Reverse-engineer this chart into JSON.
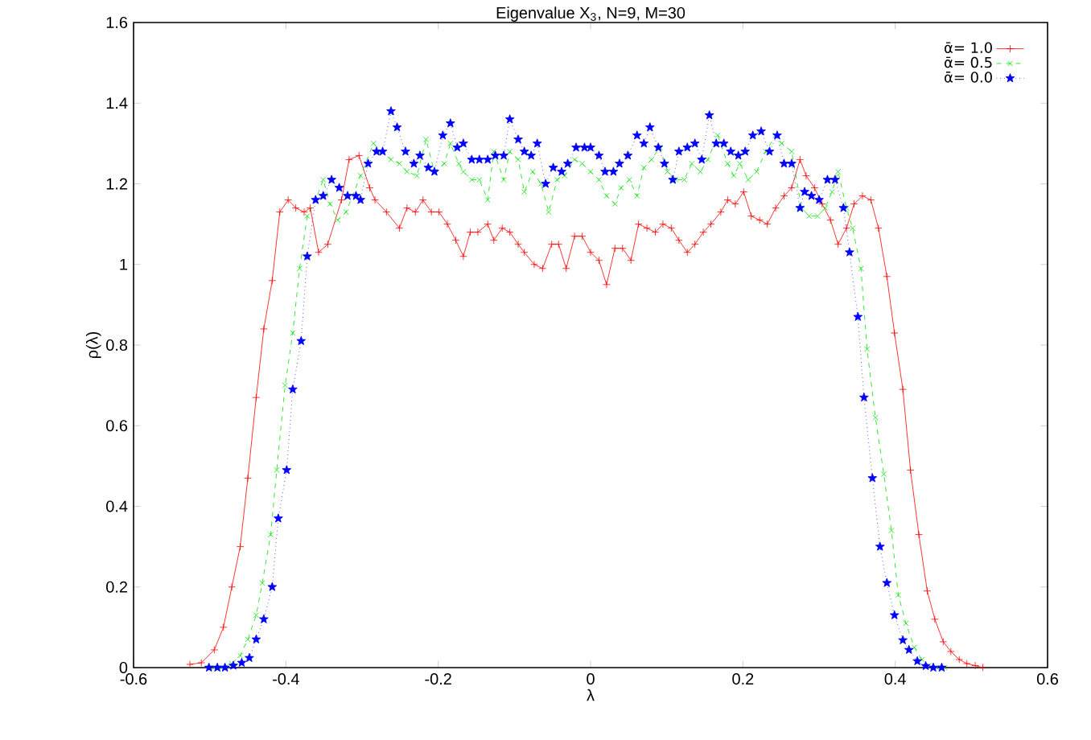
{
  "chart_data": {
    "type": "line",
    "title": "Eigenvalue X$_{3}$, N=9, M=30",
    "xlabel": "λ",
    "ylabel": "ρ(λ)",
    "xlim": [
      -0.6,
      0.6
    ],
    "ylim": [
      0,
      1.6
    ],
    "xticks": [
      -0.6,
      -0.4,
      -0.2,
      0,
      0.2,
      0.4,
      0.6
    ],
    "yticks": [
      0,
      0.2,
      0.4,
      0.6,
      0.8,
      1,
      1.2,
      1.4,
      1.6
    ],
    "grid": false,
    "legend": "top right",
    "series": [
      {
        "name": "ᾱ= 1.0",
        "color": "#ff0000",
        "marker": "cross",
        "line_style": "solid",
        "x": [
          -0.526,
          -0.511,
          -0.494,
          -0.482,
          -0.471,
          -0.46,
          -0.45,
          -0.439,
          -0.429,
          -0.418,
          -0.408,
          -0.397,
          -0.387,
          -0.376,
          -0.368,
          -0.357,
          -0.345,
          -0.327,
          -0.317,
          -0.304,
          -0.29,
          -0.283,
          -0.268,
          -0.251,
          -0.241,
          -0.23,
          -0.22,
          -0.209,
          -0.199,
          -0.188,
          -0.177,
          -0.167,
          -0.158,
          -0.148,
          -0.135,
          -0.127,
          -0.116,
          -0.106,
          -0.095,
          -0.087,
          -0.074,
          -0.063,
          -0.051,
          -0.042,
          -0.032,
          -0.021,
          -0.011,
          0.0,
          0.011,
          0.021,
          0.032,
          0.042,
          0.053,
          0.063,
          0.074,
          0.085,
          0.095,
          0.106,
          0.116,
          0.127,
          0.137,
          0.148,
          0.158,
          0.171,
          0.18,
          0.19,
          0.201,
          0.211,
          0.222,
          0.232,
          0.243,
          0.254,
          0.264,
          0.275,
          0.283,
          0.294,
          0.304,
          0.315,
          0.325,
          0.336,
          0.346,
          0.357,
          0.368,
          0.378,
          0.389,
          0.399,
          0.41,
          0.42,
          0.431,
          0.442,
          0.452,
          0.463,
          0.473,
          0.484,
          0.494,
          0.505,
          0.515
        ],
        "values": [
          0.008,
          0.012,
          0.044,
          0.1,
          0.2,
          0.3,
          0.47,
          0.67,
          0.84,
          0.96,
          1.13,
          1.16,
          1.14,
          1.13,
          1.14,
          1.03,
          1.05,
          1.16,
          1.26,
          1.27,
          1.19,
          1.16,
          1.13,
          1.09,
          1.14,
          1.13,
          1.16,
          1.13,
          1.13,
          1.1,
          1.06,
          1.02,
          1.08,
          1.08,
          1.1,
          1.06,
          1.09,
          1.08,
          1.05,
          1.03,
          1.0,
          0.99,
          1.05,
          1.05,
          0.99,
          1.07,
          1.07,
          1.03,
          1.01,
          0.95,
          1.04,
          1.04,
          1.01,
          1.1,
          1.09,
          1.08,
          1.1,
          1.09,
          1.06,
          1.03,
          1.05,
          1.08,
          1.1,
          1.13,
          1.16,
          1.15,
          1.18,
          1.12,
          1.11,
          1.1,
          1.14,
          1.17,
          1.19,
          1.26,
          1.22,
          1.19,
          1.15,
          1.11,
          1.05,
          1.09,
          1.15,
          1.17,
          1.16,
          1.09,
          0.97,
          0.83,
          0.69,
          0.49,
          0.33,
          0.19,
          0.12,
          0.064,
          0.04,
          0.02,
          0.01,
          0.005,
          0.0
        ]
      },
      {
        "name": "ᾱ= 0.5",
        "color": "#00e000",
        "marker": "x",
        "line_style": "dashed",
        "x": [
          -0.494,
          -0.484,
          -0.471,
          -0.46,
          -0.45,
          -0.439,
          -0.431,
          -0.42,
          -0.412,
          -0.401,
          -0.391,
          -0.382,
          -0.372,
          -0.361,
          -0.351,
          -0.342,
          -0.332,
          -0.321,
          -0.302,
          -0.285,
          -0.275,
          -0.262,
          -0.251,
          -0.241,
          -0.228,
          -0.216,
          -0.205,
          -0.192,
          -0.184,
          -0.173,
          -0.167,
          -0.156,
          -0.146,
          -0.135,
          -0.127,
          -0.114,
          -0.106,
          -0.095,
          -0.087,
          -0.076,
          -0.065,
          -0.055,
          -0.044,
          -0.034,
          -0.021,
          -0.011,
          0.0,
          0.011,
          0.021,
          0.032,
          0.04,
          0.051,
          0.061,
          0.07,
          0.08,
          0.091,
          0.101,
          0.112,
          0.123,
          0.133,
          0.144,
          0.154,
          0.167,
          0.18,
          0.188,
          0.196,
          0.207,
          0.218,
          0.23,
          0.243,
          0.251,
          0.264,
          0.277,
          0.287,
          0.298,
          0.308,
          0.317,
          0.325,
          0.336,
          0.344,
          0.355,
          0.363,
          0.374,
          0.385,
          0.395,
          0.404,
          0.414,
          0.425,
          0.435,
          0.444,
          0.454,
          0.465
        ],
        "values": [
          0.0,
          0.0,
          0.01,
          0.03,
          0.07,
          0.13,
          0.21,
          0.33,
          0.49,
          0.7,
          0.83,
          0.99,
          1.12,
          1.16,
          1.21,
          1.15,
          1.11,
          1.13,
          1.22,
          1.3,
          1.28,
          1.26,
          1.25,
          1.23,
          1.22,
          1.31,
          1.23,
          1.25,
          1.3,
          1.25,
          1.23,
          1.21,
          1.21,
          1.16,
          1.28,
          1.21,
          1.28,
          1.26,
          1.18,
          1.23,
          1.2,
          1.13,
          1.21,
          1.22,
          1.26,
          1.25,
          1.23,
          1.21,
          1.17,
          1.15,
          1.19,
          1.21,
          1.17,
          1.24,
          1.26,
          1.29,
          1.23,
          1.21,
          1.21,
          1.25,
          1.23,
          1.26,
          1.32,
          1.25,
          1.22,
          1.25,
          1.21,
          1.23,
          1.28,
          1.32,
          1.3,
          1.28,
          1.14,
          1.12,
          1.12,
          1.14,
          1.18,
          1.23,
          1.14,
          1.09,
          0.99,
          0.79,
          0.62,
          0.48,
          0.34,
          0.18,
          0.11,
          0.05,
          0.02,
          0.005,
          0.0,
          0.0
        ]
      },
      {
        "name": "ᾱ= 0.0",
        "color": "#0000ff",
        "marker": "star",
        "line_style": "dotted",
        "x": [
          -0.501,
          -0.49,
          -0.48,
          -0.469,
          -0.458,
          -0.448,
          -0.439,
          -0.429,
          -0.418,
          -0.41,
          -0.399,
          -0.391,
          -0.38,
          -0.372,
          -0.361,
          -0.351,
          -0.34,
          -0.33,
          -0.319,
          -0.308,
          -0.302,
          -0.292,
          -0.281,
          -0.273,
          -0.262,
          -0.254,
          -0.243,
          -0.232,
          -0.224,
          -0.213,
          -0.205,
          -0.194,
          -0.184,
          -0.175,
          -0.167,
          -0.156,
          -0.146,
          -0.135,
          -0.125,
          -0.114,
          -0.106,
          -0.095,
          -0.087,
          -0.078,
          -0.07,
          -0.059,
          -0.049,
          -0.038,
          -0.03,
          -0.019,
          -0.008,
          0.0,
          0.011,
          0.019,
          0.03,
          0.038,
          0.049,
          0.061,
          0.07,
          0.078,
          0.089,
          0.097,
          0.108,
          0.116,
          0.127,
          0.137,
          0.146,
          0.156,
          0.165,
          0.175,
          0.184,
          0.194,
          0.203,
          0.213,
          0.224,
          0.235,
          0.245,
          0.254,
          0.264,
          0.275,
          0.281,
          0.29,
          0.3,
          0.311,
          0.321,
          0.332,
          0.34,
          0.351,
          0.359,
          0.37,
          0.38,
          0.389,
          0.399,
          0.41,
          0.418,
          0.429,
          0.44,
          0.45,
          0.461
        ],
        "values": [
          0.0,
          0.0,
          0.0,
          0.005,
          0.012,
          0.024,
          0.07,
          0.12,
          0.2,
          0.37,
          0.49,
          0.69,
          0.81,
          1.02,
          1.16,
          1.17,
          1.21,
          1.19,
          1.17,
          1.17,
          1.16,
          1.25,
          1.28,
          1.28,
          1.38,
          1.34,
          1.28,
          1.25,
          1.27,
          1.24,
          1.23,
          1.32,
          1.35,
          1.29,
          1.3,
          1.26,
          1.26,
          1.26,
          1.27,
          1.27,
          1.36,
          1.31,
          1.28,
          1.27,
          1.3,
          1.2,
          1.24,
          1.23,
          1.25,
          1.29,
          1.29,
          1.29,
          1.27,
          1.23,
          1.23,
          1.25,
          1.27,
          1.32,
          1.3,
          1.34,
          1.29,
          1.25,
          1.21,
          1.28,
          1.29,
          1.3,
          1.26,
          1.37,
          1.3,
          1.3,
          1.28,
          1.27,
          1.28,
          1.32,
          1.33,
          1.28,
          1.32,
          1.25,
          1.25,
          1.14,
          1.18,
          1.17,
          1.16,
          1.21,
          1.21,
          1.14,
          1.03,
          0.87,
          0.67,
          0.47,
          0.3,
          0.21,
          0.13,
          0.068,
          0.044,
          0.016,
          0.004,
          0.0,
          0.0
        ]
      }
    ]
  }
}
